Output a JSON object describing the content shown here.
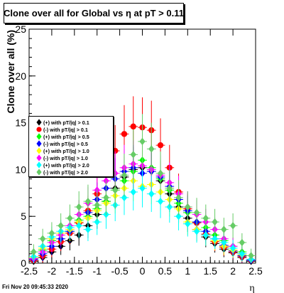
{
  "title": "Clone  over all for Global vs   η at pT > 0.11",
  "footer": "Fri Nov 20 09:45:33 2020",
  "chart_data": {
    "type": "scatter",
    "title": "Clone  over all for Global vs   η at pT > 0.11",
    "xlabel": "η",
    "ylabel": "Clone  over all (%)",
    "xlim": [
      -2.5,
      2.5
    ],
    "ylim": [
      0,
      25
    ],
    "xticks": [
      "-2.5",
      "-2",
      "-1.5",
      "-1",
      "-0.5",
      "0",
      "0.5",
      "1",
      "1.5",
      "2",
      "2.5"
    ],
    "yticks": [
      "0",
      "5",
      "10",
      "15",
      "20",
      "25"
    ],
    "legend_position": "left",
    "grid": false,
    "series": [
      {
        "name": "(+) with pT/|q| > 0.1",
        "color": "#000000",
        "marker": "diamond",
        "x": [
          -2.4,
          -2.2,
          -2.0,
          -1.8,
          -1.6,
          -1.4,
          -1.2,
          -1.0,
          -0.8,
          -0.6,
          -0.4,
          -0.2,
          0.0,
          0.2,
          0.4,
          0.6,
          0.8,
          1.0,
          1.2,
          1.4,
          1.6,
          1.8,
          2.0,
          2.2,
          2.4
        ],
        "y": [
          0.2,
          0.6,
          1.2,
          1.8,
          2.4,
          3.0,
          4.0,
          5.2,
          6.6,
          8.0,
          9.2,
          10.0,
          10.2,
          9.8,
          8.8,
          7.4,
          6.0,
          4.8,
          3.6,
          2.8,
          2.1,
          1.5,
          1.1,
          0.6,
          0.2
        ]
      },
      {
        "name": "(-) with pT/|q| > 0.1",
        "color": "#ff0000",
        "marker": "circle",
        "x": [
          -2.4,
          -2.2,
          -2.0,
          -1.8,
          -1.6,
          -1.4,
          -1.2,
          -1.0,
          -0.8,
          -0.6,
          -0.4,
          -0.2,
          0.0,
          0.2,
          0.4,
          0.6,
          0.8,
          1.0,
          1.2,
          1.4,
          1.6,
          1.8,
          2.0,
          2.2,
          2.4
        ],
        "y": [
          0.3,
          0.8,
          1.5,
          2.3,
          3.2,
          4.3,
          5.6,
          7.4,
          9.6,
          12.0,
          13.8,
          14.6,
          14.5,
          14.2,
          12.6,
          10.2,
          7.6,
          5.8,
          4.3,
          3.1,
          2.3,
          1.7,
          1.2,
          0.7,
          0.3
        ]
      },
      {
        "name": "(+) with pT/|q| > 0.5",
        "color": "#00ff00",
        "marker": "diamond",
        "x": [
          -2.4,
          -2.2,
          -2.0,
          -1.8,
          -1.6,
          -1.4,
          -1.2,
          -1.0,
          -0.8,
          -0.6,
          -0.4,
          -0.2,
          0.0,
          0.2,
          0.4,
          0.6,
          0.8,
          1.0,
          1.2,
          1.4,
          1.6,
          1.8,
          2.0,
          2.2,
          2.4
        ],
        "y": [
          0.5,
          1.4,
          2.4,
          3.0,
          3.4,
          4.6,
          5.0,
          5.8,
          6.6,
          7.8,
          8.8,
          9.8,
          11.0,
          10.2,
          9.0,
          7.8,
          6.4,
          5.4,
          4.4,
          3.8,
          3.0,
          2.4,
          1.8,
          1.2,
          0.4
        ]
      },
      {
        "name": "(-) with pT/|q| > 0.5",
        "color": "#0000ff",
        "marker": "diamond",
        "x": [
          -2.4,
          -2.2,
          -2.0,
          -1.8,
          -1.6,
          -1.4,
          -1.2,
          -1.0,
          -0.8,
          -0.6,
          -0.4,
          -0.2,
          0.0,
          0.2,
          0.4,
          0.6,
          0.8,
          1.0,
          1.2,
          1.4,
          1.6,
          1.8,
          2.0,
          2.2,
          2.4
        ],
        "y": [
          0.4,
          1.0,
          1.8,
          2.6,
          3.4,
          4.4,
          5.4,
          6.8,
          8.0,
          9.0,
          9.8,
          10.2,
          9.6,
          9.8,
          9.2,
          8.2,
          6.8,
          5.6,
          4.4,
          3.4,
          2.6,
          1.9,
          1.3,
          0.8,
          0.3
        ]
      },
      {
        "name": "(+) with pT/|q| > 1.0",
        "color": "#ffff00",
        "marker": "diamond",
        "x": [
          -2.4,
          -2.2,
          -2.0,
          -1.8,
          -1.6,
          -1.4,
          -1.2,
          -1.0,
          -0.8,
          -0.6,
          -0.4,
          -0.2,
          0.0,
          0.2,
          0.4,
          0.6,
          0.8,
          1.0,
          1.2,
          1.4,
          1.6,
          1.8,
          2.0,
          2.2,
          2.4
        ],
        "y": [
          0.6,
          1.6,
          2.6,
          3.2,
          3.6,
          4.4,
          4.8,
          5.6,
          6.4,
          7.2,
          8.0,
          8.8,
          8.2,
          8.4,
          7.6,
          6.8,
          5.8,
          4.4,
          3.6,
          3.0,
          2.4,
          1.8,
          1.4,
          0.9,
          0.4
        ]
      },
      {
        "name": "(-) with pT/|q| > 1.0",
        "color": "#ff00ff",
        "marker": "diamond",
        "x": [
          -2.4,
          -2.2,
          -2.0,
          -1.8,
          -1.6,
          -1.4,
          -1.2,
          -1.0,
          -0.8,
          -0.6,
          -0.4,
          -0.2,
          0.0,
          0.2,
          0.4,
          0.6,
          0.8,
          1.0,
          1.2,
          1.4,
          1.6,
          1.8,
          2.0,
          2.2,
          2.4
        ],
        "y": [
          0.5,
          1.2,
          2.2,
          3.0,
          4.0,
          5.2,
          6.4,
          7.8,
          8.8,
          9.6,
          10.2,
          10.6,
          10.4,
          10.0,
          9.4,
          8.6,
          7.4,
          6.0,
          5.2,
          4.4,
          3.6,
          2.6,
          1.8,
          1.0,
          0.4
        ]
      },
      {
        "name": "(+) with pT/|q| > 2.0",
        "color": "#00ffff",
        "marker": "diamond",
        "x": [
          -2.4,
          -2.2,
          -2.0,
          -1.8,
          -1.6,
          -1.4,
          -1.2,
          -1.0,
          -0.8,
          -0.6,
          -0.4,
          -0.2,
          0.0,
          0.2,
          0.4,
          0.6,
          0.8,
          1.0,
          1.2,
          1.4,
          1.6,
          1.8,
          2.0,
          2.2,
          2.4
        ],
        "y": [
          0.7,
          1.8,
          2.8,
          3.4,
          3.8,
          4.0,
          3.6,
          4.4,
          5.2,
          6.2,
          7.0,
          7.6,
          8.0,
          7.4,
          6.6,
          6.0,
          5.0,
          4.2,
          3.4,
          3.0,
          2.6,
          2.2,
          1.6,
          1.0,
          0.4
        ]
      },
      {
        "name": "(-) with pT/|q| > 2.0",
        "color": "#66cc66",
        "marker": "diamond",
        "x": [
          -2.4,
          -2.2,
          -2.0,
          -1.8,
          -1.6,
          -1.4,
          -1.2,
          -1.0,
          -0.8,
          -0.6,
          -0.4,
          -0.2,
          0.0,
          0.2,
          0.4,
          0.6,
          0.8,
          1.0,
          1.2,
          1.4,
          1.6,
          1.8,
          2.0,
          2.2,
          2.4
        ],
        "y": [
          1.2,
          2.6,
          3.2,
          4.0,
          4.8,
          6.0,
          6.6,
          6.2,
          7.0,
          7.8,
          9.4,
          11.6,
          13.0,
          12.2,
          9.6,
          8.0,
          7.0,
          6.0,
          5.4,
          4.8,
          4.4,
          3.6,
          4.0,
          2.2,
          0.8
        ]
      }
    ]
  }
}
